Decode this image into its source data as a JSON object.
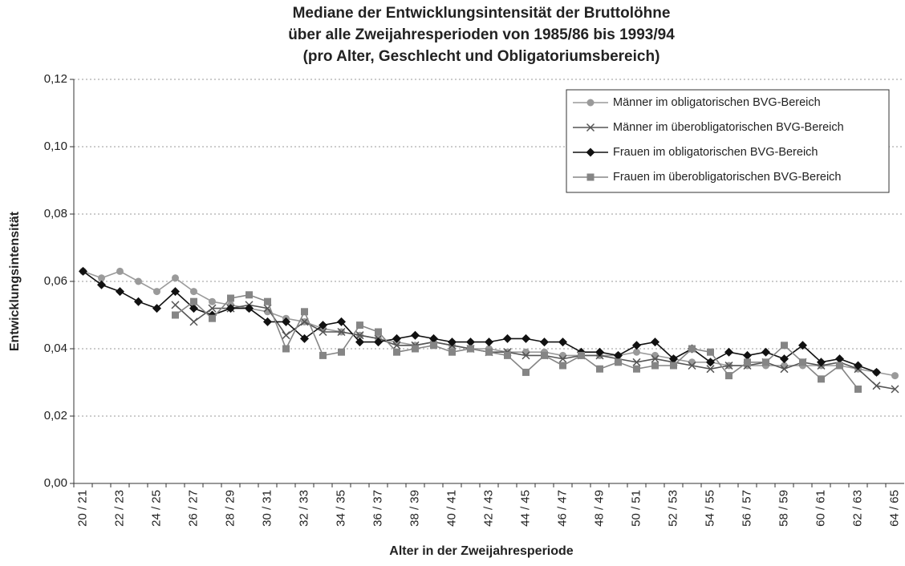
{
  "chart_data": {
    "type": "line",
    "title": [
      "Mediane der Entwicklungsintensität der Bruttolöhne",
      "über alle Zweijahresperioden von 1985/86 bis 1993/94",
      "(pro Alter, Geschlecht und Obligatoriumsbereich)"
    ],
    "x_label": "Alter in der Zweijahresperiode",
    "y_label": "Entwicklungsintensität",
    "categories": [
      "20 / 21",
      null,
      "22 / 23",
      null,
      "24 / 25",
      null,
      "26 / 27",
      null,
      "28 / 29",
      null,
      "30 / 31",
      null,
      "32 / 33",
      null,
      "34 / 35",
      null,
      "36 / 37",
      null,
      "38 / 39",
      null,
      "40 / 41",
      null,
      "42 / 43",
      null,
      "44 / 45",
      null,
      "46 / 47",
      null,
      "48 / 49",
      null,
      "50 / 51",
      null,
      "52 / 53",
      null,
      "54 / 55",
      null,
      "56 / 57",
      null,
      "58 / 59",
      null,
      "60 / 61",
      null,
      "62 / 63",
      null,
      "64 / 65"
    ],
    "ylim": [
      0,
      0.12
    ],
    "yticks": [
      {
        "value": 0,
        "label": "0,00"
      },
      {
        "value": 0.02,
        "label": "0,02"
      },
      {
        "value": 0.04,
        "label": "0,04"
      },
      {
        "value": 0.06,
        "label": "0,06"
      },
      {
        "value": 0.08,
        "label": "0,08"
      },
      {
        "value": 0.1,
        "label": "0,10"
      },
      {
        "value": 0.12,
        "label": "0,12"
      }
    ],
    "grid": true,
    "legend_position": "upper right",
    "series": [
      {
        "name": "Männer im obligatorischen BVG-Bereich",
        "color": "#9a9a9a",
        "marker": "circle",
        "values": [
          0.063,
          0.061,
          0.063,
          0.06,
          0.057,
          0.061,
          0.057,
          0.054,
          0.053,
          0.052,
          0.051,
          0.049,
          0.048,
          0.046,
          0.045,
          0.044,
          0.043,
          0.042,
          0.041,
          0.042,
          0.041,
          0.04,
          0.04,
          0.039,
          0.039,
          0.039,
          0.038,
          0.038,
          0.038,
          0.038,
          0.039,
          0.038,
          0.037,
          0.036,
          0.036,
          0.035,
          0.035,
          0.035,
          0.035,
          0.035,
          0.035,
          0.035,
          0.034,
          0.033,
          0.032
        ]
      },
      {
        "name": "Männer im überobligatorischen BVG-Bereich",
        "color": "#555555",
        "marker": "x",
        "values": [
          null,
          null,
          null,
          null,
          null,
          0.053,
          0.048,
          0.052,
          0.052,
          0.053,
          0.052,
          0.044,
          0.048,
          0.045,
          0.045,
          0.044,
          0.043,
          0.041,
          0.041,
          0.042,
          0.041,
          0.04,
          0.039,
          0.039,
          0.038,
          0.038,
          0.037,
          0.038,
          0.038,
          0.037,
          0.036,
          0.037,
          0.036,
          0.035,
          0.034,
          0.035,
          0.035,
          0.036,
          0.034,
          0.036,
          0.035,
          0.036,
          0.034,
          0.029,
          0.028
        ]
      },
      {
        "name": "Frauen im obligatorischen BVG-Bereich",
        "color": "#111111",
        "marker": "diamond",
        "values": [
          0.063,
          0.059,
          0.057,
          0.054,
          0.052,
          0.057,
          0.052,
          0.05,
          0.052,
          0.052,
          0.048,
          0.048,
          0.043,
          0.047,
          0.048,
          0.042,
          0.042,
          0.043,
          0.044,
          0.043,
          0.042,
          0.042,
          0.042,
          0.043,
          0.043,
          0.042,
          0.042,
          0.039,
          0.039,
          0.038,
          0.041,
          0.042,
          0.037,
          0.04,
          0.036,
          0.039,
          0.038,
          0.039,
          0.037,
          0.041,
          0.036,
          0.037,
          0.035,
          0.033,
          null
        ]
      },
      {
        "name": "Frauen im überobligatorischen BVG-Bereich",
        "color": "#858585",
        "marker": "square",
        "values": [
          null,
          null,
          null,
          null,
          null,
          0.05,
          0.054,
          0.049,
          0.055,
          0.056,
          0.054,
          0.04,
          0.051,
          0.038,
          0.039,
          0.047,
          0.045,
          0.039,
          0.04,
          0.041,
          0.039,
          0.04,
          0.039,
          0.038,
          0.033,
          0.038,
          0.035,
          0.038,
          0.034,
          0.036,
          0.034,
          0.035,
          0.035,
          0.04,
          0.039,
          0.032,
          0.036,
          0.036,
          0.041,
          0.036,
          0.031,
          0.035,
          0.028,
          null,
          null
        ]
      }
    ]
  }
}
